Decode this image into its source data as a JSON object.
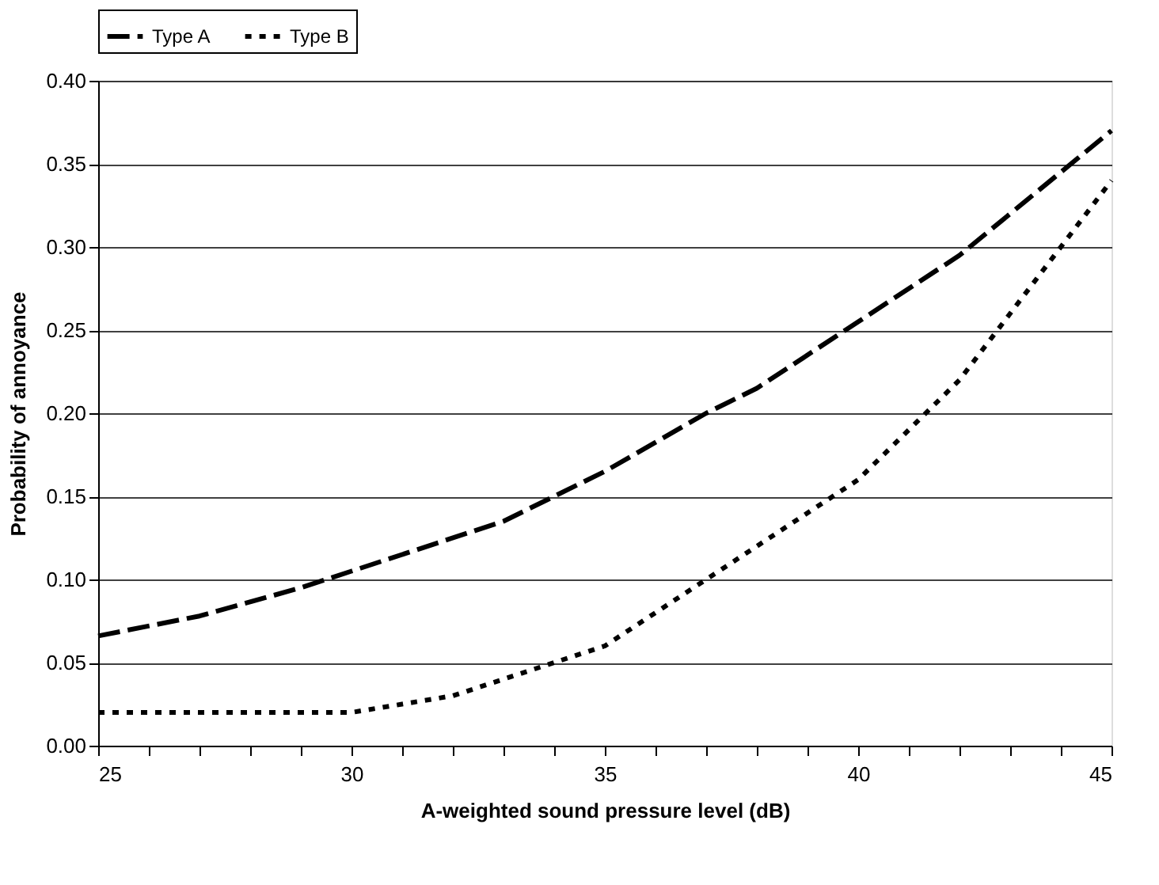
{
  "chart_data": {
    "type": "line",
    "xlabel": "A-weighted sound pressure level (dB)",
    "ylabel": "Probability of annoyance",
    "xlim": [
      25,
      45
    ],
    "ylim": [
      0,
      0.4
    ],
    "xticks": [
      25,
      {
        "value": 26,
        "label": null
      },
      {
        "value": 27,
        "label": null
      },
      {
        "value": 28,
        "label": null
      },
      {
        "value": 29,
        "label": null
      },
      30,
      {
        "value": 31,
        "label": null
      },
      {
        "value": 32,
        "label": null
      },
      {
        "value": 33,
        "label": null
      },
      {
        "value": 34,
        "label": null
      },
      35,
      {
        "value": 36,
        "label": null
      },
      {
        "value": 37,
        "label": null
      },
      {
        "value": 38,
        "label": null
      },
      {
        "value": 39,
        "label": null
      },
      40,
      {
        "value": 41,
        "label": null
      },
      {
        "value": 42,
        "label": null
      },
      {
        "value": 43,
        "label": null
      },
      {
        "value": 44,
        "label": null
      },
      45
    ],
    "yticks": [
      {
        "value": 0,
        "label": "0.00"
      },
      {
        "value": 0.05,
        "label": "0.05"
      },
      {
        "value": 0.1,
        "label": "0.10"
      },
      {
        "value": 0.15,
        "label": "0.15"
      },
      {
        "value": 0.2,
        "label": "0.20"
      },
      {
        "value": 0.25,
        "label": "0.25"
      },
      {
        "value": 0.3,
        "label": "0.30"
      },
      {
        "value": 0.35,
        "label": "0.35"
      },
      {
        "value": 0.4,
        "label": "0.40"
      }
    ],
    "grid": "y",
    "legend": "top",
    "marker": "none",
    "series": [
      {
        "name": "Type A",
        "color": "#000000",
        "line_style": "dashed",
        "x": [
          25,
          27,
          29,
          30,
          33,
          35,
          37,
          38,
          40,
          41,
          42,
          43,
          44,
          45
        ],
        "values": [
          0.066,
          0.078,
          0.095,
          0.105,
          0.135,
          0.165,
          0.2,
          0.215,
          0.255,
          0.275,
          0.295,
          0.32,
          0.345,
          0.37
        ]
      },
      {
        "name": "Type B",
        "color": "#000000",
        "line_style": "dotted",
        "x": [
          25,
          28,
          30,
          31,
          32,
          33,
          34,
          35,
          36,
          37,
          38,
          39,
          40,
          41,
          42,
          43,
          44,
          45
        ],
        "values": [
          0.02,
          0.02,
          0.02,
          0.025,
          0.03,
          0.04,
          0.05,
          0.06,
          0.08,
          0.1,
          0.12,
          0.14,
          0.16,
          0.19,
          0.22,
          0.26,
          0.3,
          0.34
        ]
      }
    ]
  }
}
